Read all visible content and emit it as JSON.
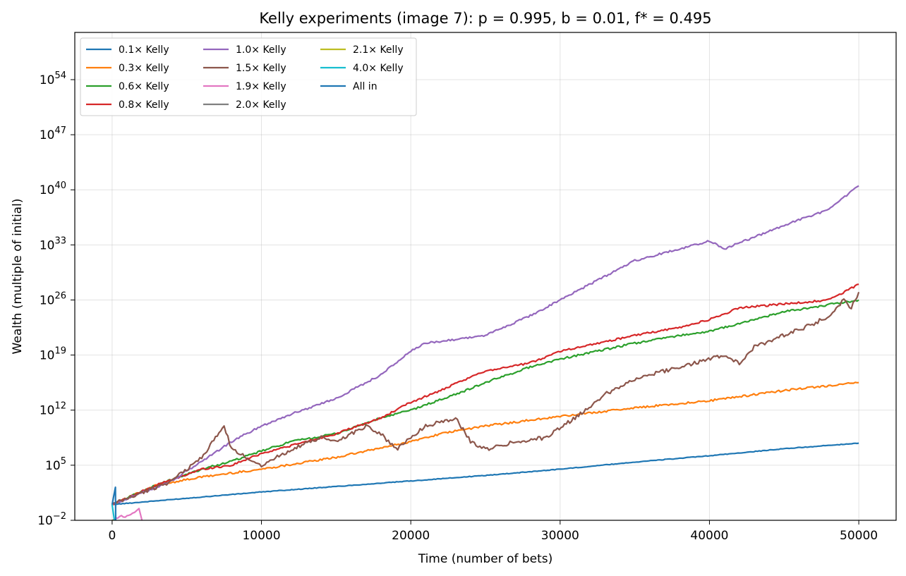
{
  "chart_data": {
    "type": "line",
    "title": "Kelly experiments (image 7): p = 0.995, b = 0.01, f* = 0.495",
    "xlabel": "Time (number of bets)",
    "ylabel": "Wealth (multiple of initial)",
    "xlim": [
      -2500,
      52500
    ],
    "ylim_log10": [
      -2,
      60
    ],
    "yscale": "log",
    "grid": true,
    "legend_position": "top-left",
    "legend_columns": 3,
    "x_ticks": [
      0,
      10000,
      20000,
      30000,
      40000,
      50000
    ],
    "x_tick_labels": [
      "0",
      "10000",
      "20000",
      "30000",
      "40000",
      "50000"
    ],
    "y_ticks_log10": [
      -2,
      5,
      12,
      19,
      26,
      33,
      40,
      47,
      54
    ],
    "y_tick_labels": [
      {
        "base": "10",
        "exp": "−2"
      },
      {
        "base": "10",
        "exp": "5"
      },
      {
        "base": "10",
        "exp": "12"
      },
      {
        "base": "10",
        "exp": "19"
      },
      {
        "base": "10",
        "exp": "26"
      },
      {
        "base": "10",
        "exp": "33"
      },
      {
        "base": "10",
        "exp": "40"
      },
      {
        "base": "10",
        "exp": "47"
      },
      {
        "base": "10",
        "exp": "54"
      }
    ],
    "series": [
      {
        "name": "0.1× Kelly",
        "color": "#1f77b4",
        "log10_points": [
          [
            0,
            0
          ],
          [
            5000,
            0.8
          ],
          [
            10000,
            1.6
          ],
          [
            15000,
            2.3
          ],
          [
            20000,
            3.0
          ],
          [
            25000,
            3.7
          ],
          [
            30000,
            4.5
          ],
          [
            35000,
            5.4
          ],
          [
            40000,
            6.2
          ],
          [
            45000,
            7.1
          ],
          [
            50000,
            7.8
          ]
        ]
      },
      {
        "name": "0.3× Kelly",
        "color": "#ff7f0e",
        "log10_points": [
          [
            0,
            0
          ],
          [
            3000,
            2.5
          ],
          [
            6000,
            3.5
          ],
          [
            10000,
            4.5
          ],
          [
            15000,
            6.0
          ],
          [
            20000,
            8.0
          ],
          [
            22000,
            9.0
          ],
          [
            25000,
            10.0
          ],
          [
            30000,
            11.2
          ],
          [
            35000,
            12.3
          ],
          [
            40000,
            13.2
          ],
          [
            45000,
            14.5
          ],
          [
            50000,
            15.5
          ]
        ]
      },
      {
        "name": "0.6× Kelly",
        "color": "#2ca02c",
        "log10_points": [
          [
            0,
            0
          ],
          [
            3000,
            2.5
          ],
          [
            6000,
            4.5
          ],
          [
            8000,
            5.5
          ],
          [
            10000,
            6.8
          ],
          [
            12000,
            8.0
          ],
          [
            15000,
            9.0
          ],
          [
            18000,
            11.0
          ],
          [
            20000,
            12.0
          ],
          [
            23000,
            14.0
          ],
          [
            25000,
            15.5
          ],
          [
            28000,
            17.5
          ],
          [
            30000,
            18.5
          ],
          [
            35000,
            20.5
          ],
          [
            38000,
            21.5
          ],
          [
            40000,
            22.0
          ],
          [
            45000,
            24.5
          ],
          [
            50000,
            26.0
          ]
        ]
      },
      {
        "name": "0.8× Kelly",
        "color": "#d62728",
        "log10_points": [
          [
            0,
            0
          ],
          [
            3000,
            2.5
          ],
          [
            6000,
            4.5
          ],
          [
            8000,
            5.0
          ],
          [
            10000,
            6.5
          ],
          [
            12000,
            7.5
          ],
          [
            15000,
            9.0
          ],
          [
            18000,
            11.0
          ],
          [
            20000,
            13.0
          ],
          [
            22000,
            14.5
          ],
          [
            25000,
            17.0
          ],
          [
            28000,
            18.0
          ],
          [
            30000,
            19.5
          ],
          [
            35000,
            21.5
          ],
          [
            38000,
            22.5
          ],
          [
            40000,
            23.5
          ],
          [
            42000,
            25.0
          ],
          [
            45000,
            25.5
          ],
          [
            48000,
            26.0
          ],
          [
            50000,
            28.0
          ]
        ]
      },
      {
        "name": "1.0× Kelly",
        "color": "#9467bd",
        "log10_points": [
          [
            0,
            0
          ],
          [
            4000,
            3.0
          ],
          [
            8000,
            8.0
          ],
          [
            10000,
            10.0
          ],
          [
            12000,
            11.5
          ],
          [
            15000,
            13.5
          ],
          [
            18000,
            16.5
          ],
          [
            20000,
            19.5
          ],
          [
            21000,
            20.5
          ],
          [
            23000,
            21.0
          ],
          [
            25000,
            21.5
          ],
          [
            28000,
            24.0
          ],
          [
            30000,
            26.0
          ],
          [
            33000,
            29.0
          ],
          [
            35000,
            31.0
          ],
          [
            37000,
            32.0
          ],
          [
            39000,
            33.0
          ],
          [
            40000,
            33.5
          ],
          [
            41000,
            32.5
          ],
          [
            43000,
            34.0
          ],
          [
            45000,
            35.5
          ],
          [
            48000,
            37.5
          ],
          [
            50000,
            40.5
          ]
        ]
      },
      {
        "name": "1.5× Kelly",
        "color": "#8c564b",
        "log10_points": [
          [
            0,
            0
          ],
          [
            2000,
            1.5
          ],
          [
            4000,
            3.0
          ],
          [
            5000,
            4.5
          ],
          [
            6000,
            6.0
          ],
          [
            7500,
            10.0
          ],
          [
            8000,
            7.0
          ],
          [
            9000,
            6.0
          ],
          [
            10000,
            5.0
          ],
          [
            12000,
            7.0
          ],
          [
            14000,
            8.5
          ],
          [
            15000,
            8.0
          ],
          [
            17000,
            10.0
          ],
          [
            18000,
            9.0
          ],
          [
            19000,
            7.0
          ],
          [
            20000,
            8.5
          ],
          [
            21000,
            10.0
          ],
          [
            23000,
            11.0
          ],
          [
            24000,
            8.0
          ],
          [
            25000,
            7.0
          ],
          [
            27000,
            8.0
          ],
          [
            29000,
            8.5
          ],
          [
            31000,
            11.0
          ],
          [
            33000,
            14.0
          ],
          [
            35000,
            16.0
          ],
          [
            37000,
            17.0
          ],
          [
            39000,
            18.0
          ],
          [
            41000,
            19.0
          ],
          [
            42000,
            18.0
          ],
          [
            43000,
            20.0
          ],
          [
            45000,
            21.5
          ],
          [
            47000,
            23.0
          ],
          [
            48000,
            24.0
          ],
          [
            49000,
            26.0
          ],
          [
            49500,
            25.0
          ],
          [
            50000,
            27.0
          ]
        ]
      },
      {
        "name": "1.9× Kelly",
        "color": "#e377c2",
        "log10_points": [
          [
            0,
            -2
          ],
          [
            500,
            -1.5
          ],
          [
            1000,
            -1.5
          ],
          [
            1500,
            -1.0
          ],
          [
            1800,
            -0.5
          ],
          [
            2000,
            -2
          ]
        ]
      },
      {
        "name": "2.0× Kelly",
        "color": "#7f7f7f",
        "log10_points": [
          [
            0,
            -2
          ],
          [
            100,
            -2
          ]
        ]
      },
      {
        "name": "2.1× Kelly",
        "color": "#bcbd22",
        "log10_points": [
          [
            0,
            -2
          ],
          [
            80,
            -2
          ]
        ]
      },
      {
        "name": "4.0× Kelly",
        "color": "#17becf",
        "log10_points": [
          [
            0,
            0
          ],
          [
            150,
            -2
          ]
        ]
      },
      {
        "name": "All in",
        "color": "#1f77b4",
        "log10_points": [
          [
            0,
            0
          ],
          [
            80,
            0.8
          ],
          [
            160,
            1.6
          ],
          [
            220,
            2.2
          ],
          [
            240,
            -2
          ]
        ]
      }
    ]
  }
}
